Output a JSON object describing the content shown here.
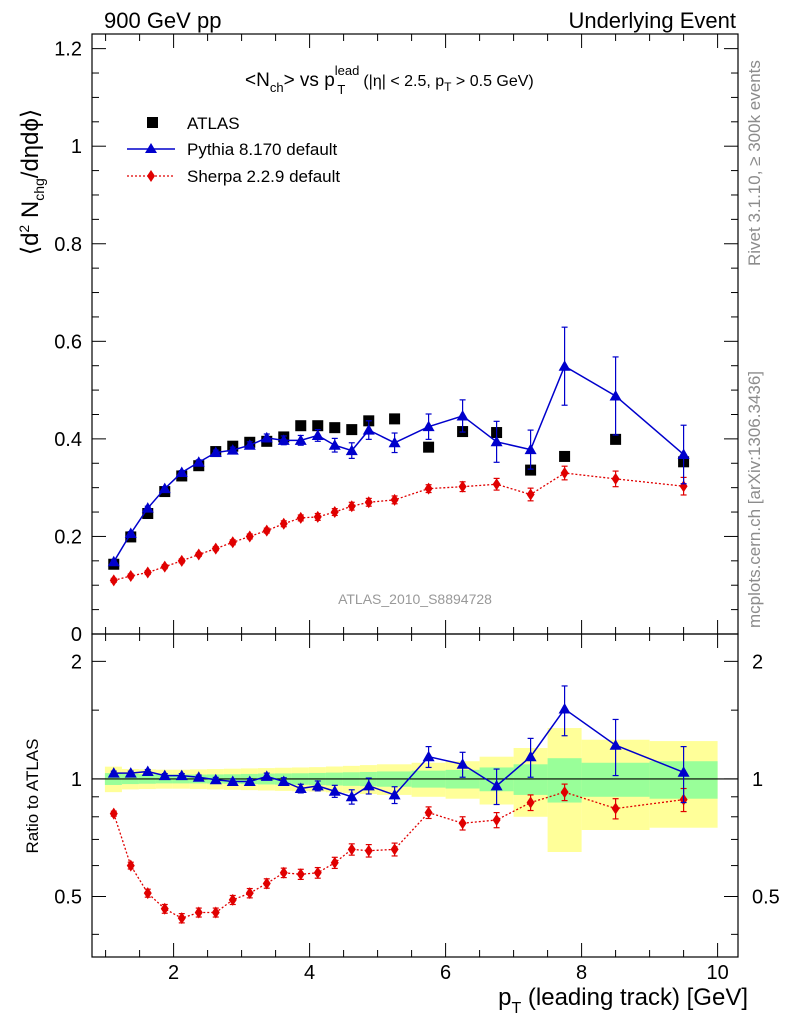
{
  "header": {
    "left": "900 GeV pp",
    "right": "Underlying Event"
  },
  "side_text": {
    "rivet": "Rivet 3.1.10, ≥ 300k events",
    "mcplots": "mcplots.cern.ch [arXiv:1306.3436]"
  },
  "colors": {
    "atlas": "#000000",
    "pythia": "#0000cc",
    "sherpa": "#e00000",
    "band_inner": "#99ff99",
    "band_outer": "#ffff99"
  },
  "chart_data": [
    {
      "id": "main",
      "type": "scatter",
      "title": "<N_ch> vs p_T^lead (|η| < 2.5, p_T > 0.5 GeV)",
      "title_parts": {
        "lhs": "<N",
        "lhs_sub": "ch",
        "vs": "> vs p",
        "p_sub": "T",
        "p_sup": "lead",
        "cut": "(|η| < 2.5, p",
        "cut_sub": "T",
        "cut_end": " > 0.5 GeV)"
      },
      "ylabel": "⟨d² N_chg/dηdϕ⟩",
      "ylabel_parts": {
        "a": "⟨d",
        "sup": "2",
        "b": " N",
        "sub": "chg",
        "c": "/dηdϕ⟩"
      },
      "watermark": "ATLAS_2010_S8894728",
      "xlim": [
        0.8,
        10.3
      ],
      "ylim": [
        0,
        1.23
      ],
      "y_ticks": [
        0,
        0.2,
        0.4,
        0.6,
        0.8,
        1,
        1.2
      ],
      "y_tick_labels": [
        "0",
        "0.2",
        "0.4",
        "0.6",
        "0.8",
        "1",
        "1.2"
      ],
      "legend": [
        "ATLAS",
        "Pythia 8.170 default",
        "Sherpa 2.2.9 default"
      ],
      "series": [
        {
          "name": "ATLAS",
          "marker": "square",
          "x": [
            1.12,
            1.37,
            1.62,
            1.87,
            2.12,
            2.37,
            2.62,
            2.87,
            3.12,
            3.37,
            3.62,
            3.87,
            4.12,
            4.37,
            4.62,
            4.87,
            5.25,
            5.75,
            6.25,
            6.75,
            7.25,
            7.75,
            8.5,
            9.5
          ],
          "y": [
            0.143,
            0.199,
            0.247,
            0.292,
            0.324,
            0.345,
            0.374,
            0.385,
            0.393,
            0.395,
            0.404,
            0.427,
            0.427,
            0.423,
            0.419,
            0.437,
            0.441,
            0.383,
            0.415,
            0.413,
            0.336,
            0.364,
            0.399,
            0.353
          ],
          "err": []
        },
        {
          "name": "Pythia 8.170 default",
          "marker": "triangle",
          "x": [
            1.12,
            1.37,
            1.62,
            1.87,
            2.12,
            2.37,
            2.62,
            2.87,
            3.12,
            3.37,
            3.62,
            3.87,
            4.12,
            4.37,
            4.62,
            4.87,
            5.25,
            5.75,
            6.25,
            6.75,
            7.25,
            7.75,
            8.5,
            9.5
          ],
          "y": [
            0.148,
            0.206,
            0.258,
            0.298,
            0.331,
            0.352,
            0.372,
            0.377,
            0.387,
            0.402,
            0.397,
            0.397,
            0.407,
            0.387,
            0.376,
            0.418,
            0.392,
            0.425,
            0.447,
            0.394,
            0.378,
            0.549,
            0.488,
            0.368
          ],
          "err": [
            0.004,
            0.004,
            0.004,
            0.004,
            0.004,
            0.005,
            0.005,
            0.006,
            0.007,
            0.008,
            0.009,
            0.01,
            0.012,
            0.014,
            0.016,
            0.019,
            0.02,
            0.026,
            0.033,
            0.042,
            0.04,
            0.08,
            0.08,
            0.06
          ]
        },
        {
          "name": "Sherpa 2.2.9 default",
          "marker": "diamond",
          "x": [
            1.12,
            1.37,
            1.62,
            1.87,
            2.12,
            2.37,
            2.62,
            2.87,
            3.12,
            3.37,
            3.62,
            3.87,
            4.12,
            4.37,
            4.62,
            4.87,
            5.25,
            5.75,
            6.25,
            6.75,
            7.25,
            7.75,
            8.5,
            9.5
          ],
          "y": [
            0.11,
            0.119,
            0.126,
            0.138,
            0.15,
            0.163,
            0.175,
            0.188,
            0.2,
            0.212,
            0.226,
            0.238,
            0.24,
            0.25,
            0.262,
            0.27,
            0.275,
            0.298,
            0.302,
            0.307,
            0.286,
            0.33,
            0.318,
            0.303
          ],
          "err": [
            0.004,
            0.004,
            0.004,
            0.004,
            0.004,
            0.004,
            0.004,
            0.005,
            0.005,
            0.005,
            0.006,
            0.006,
            0.007,
            0.007,
            0.008,
            0.008,
            0.008,
            0.008,
            0.01,
            0.012,
            0.013,
            0.014,
            0.016,
            0.018
          ]
        }
      ]
    },
    {
      "id": "ratio",
      "type": "scatter",
      "ylabel": "Ratio to ATLAS",
      "xlabel": "p_T (leading track) [GeV]",
      "xlabel_parts": {
        "p": "p",
        "sub": "T",
        "rest": " (leading track) [GeV]"
      },
      "xlim": [
        0.8,
        10.3
      ],
      "ylim": [
        0.35,
        2.35
      ],
      "reference": 1,
      "x_ticks": [
        2,
        4,
        6,
        8,
        10
      ],
      "x_tick_labels": [
        "2",
        "4",
        "6",
        "8",
        "10"
      ],
      "y_ticks": [
        0.5,
        1,
        2
      ],
      "y_tick_labels": [
        "0.5",
        "1",
        "2"
      ],
      "bins": [
        {
          "x": [
            0.99,
            1.24
          ],
          "inner": 0.035,
          "outer": 0.075
        },
        {
          "x": [
            1.24,
            1.49
          ],
          "inner": 0.03,
          "outer": 0.06
        },
        {
          "x": [
            1.49,
            1.74
          ],
          "inner": 0.028,
          "outer": 0.058
        },
        {
          "x": [
            1.74,
            1.99
          ],
          "inner": 0.026,
          "outer": 0.056
        },
        {
          "x": [
            1.99,
            2.24
          ],
          "inner": 0.026,
          "outer": 0.056
        },
        {
          "x": [
            2.24,
            2.49
          ],
          "inner": 0.026,
          "outer": 0.058
        },
        {
          "x": [
            2.49,
            2.74
          ],
          "inner": 0.027,
          "outer": 0.06
        },
        {
          "x": [
            2.74,
            2.99
          ],
          "inner": 0.028,
          "outer": 0.062
        },
        {
          "x": [
            2.99,
            3.24
          ],
          "inner": 0.03,
          "outer": 0.064
        },
        {
          "x": [
            3.24,
            3.49
          ],
          "inner": 0.032,
          "outer": 0.066
        },
        {
          "x": [
            3.49,
            3.74
          ],
          "inner": 0.033,
          "outer": 0.068
        },
        {
          "x": [
            3.74,
            3.99
          ],
          "inner": 0.034,
          "outer": 0.07
        },
        {
          "x": [
            3.99,
            4.24
          ],
          "inner": 0.036,
          "outer": 0.072
        },
        {
          "x": [
            4.24,
            4.49
          ],
          "inner": 0.038,
          "outer": 0.076
        },
        {
          "x": [
            4.49,
            4.74
          ],
          "inner": 0.04,
          "outer": 0.08
        },
        {
          "x": [
            4.74,
            4.99
          ],
          "inner": 0.042,
          "outer": 0.085
        },
        {
          "x": [
            4.99,
            5.5
          ],
          "inner": 0.045,
          "outer": 0.09
        },
        {
          "x": [
            5.5,
            6.0
          ],
          "inner": 0.05,
          "outer": 0.1
        },
        {
          "x": [
            6.0,
            6.5
          ],
          "inner": 0.055,
          "outer": 0.11
        },
        {
          "x": [
            6.5,
            7.0
          ],
          "inner": 0.07,
          "outer": 0.14
        },
        {
          "x": [
            7.0,
            7.5
          ],
          "inner": 0.09,
          "outer": 0.2
        },
        {
          "x": [
            7.5,
            8.0
          ],
          "inner": 0.13,
          "outer": 0.35
        },
        {
          "x": [
            8.0,
            9.0
          ],
          "inner": 0.1,
          "outer": 0.26
        },
        {
          "x": [
            9.0,
            10.0
          ],
          "inner": 0.11,
          "outer": 0.25
        }
      ],
      "series": [
        {
          "name": "Pythia 8.170 default",
          "marker": "triangle",
          "x": [
            1.12,
            1.37,
            1.62,
            1.87,
            2.12,
            2.37,
            2.62,
            2.87,
            3.12,
            3.37,
            3.62,
            3.87,
            4.12,
            4.37,
            4.62,
            4.87,
            5.25,
            5.75,
            6.25,
            6.75,
            7.25,
            7.75,
            8.5,
            9.5
          ],
          "y": [
            1.035,
            1.035,
            1.045,
            1.02,
            1.02,
            1.01,
            0.995,
            0.985,
            0.985,
            1.015,
            0.985,
            0.945,
            0.96,
            0.93,
            0.9,
            0.96,
            0.91,
            1.14,
            1.09,
            0.96,
            1.14,
            1.51,
            1.22,
            1.04
          ],
          "err": [
            0.012,
            0.012,
            0.012,
            0.012,
            0.012,
            0.013,
            0.014,
            0.015,
            0.017,
            0.02,
            0.022,
            0.024,
            0.028,
            0.033,
            0.038,
            0.045,
            0.045,
            0.07,
            0.08,
            0.1,
            0.13,
            0.22,
            0.2,
            0.17
          ]
        },
        {
          "name": "Sherpa 2.2.9 default",
          "marker": "diamond",
          "x": [
            1.12,
            1.37,
            1.62,
            1.87,
            2.12,
            2.37,
            2.62,
            2.87,
            3.12,
            3.37,
            3.62,
            3.87,
            4.12,
            4.37,
            4.62,
            4.87,
            5.25,
            5.75,
            6.25,
            6.75,
            7.25,
            7.75,
            8.5,
            9.5
          ],
          "y": [
            0.815,
            0.6,
            0.51,
            0.465,
            0.44,
            0.455,
            0.455,
            0.49,
            0.51,
            0.54,
            0.575,
            0.57,
            0.575,
            0.61,
            0.66,
            0.655,
            0.66,
            0.82,
            0.77,
            0.785,
            0.87,
            0.925,
            0.84,
            0.885
          ],
          "err": [
            0.012,
            0.012,
            0.012,
            0.012,
            0.012,
            0.012,
            0.012,
            0.013,
            0.014,
            0.015,
            0.016,
            0.017,
            0.018,
            0.02,
            0.022,
            0.024,
            0.025,
            0.028,
            0.03,
            0.035,
            0.04,
            0.045,
            0.05,
            0.06
          ]
        }
      ]
    }
  ]
}
